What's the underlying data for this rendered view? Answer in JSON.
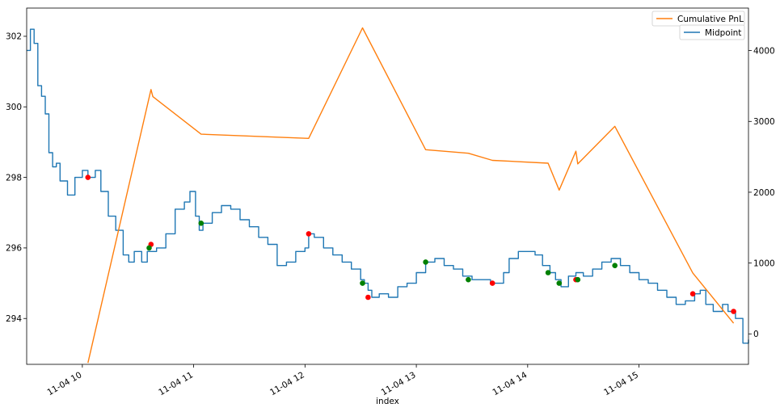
{
  "chart_data": {
    "type": "line",
    "xlabel": "index",
    "x_range": [
      "2019-11-04 09:30",
      "2019-11-04 15:59"
    ],
    "left_ylim": [
      292.7,
      302.8
    ],
    "right_ylim": [
      -430,
      4600
    ],
    "grid": false,
    "legend_placement": "top-right",
    "x_ticks": [
      {
        "t": "2019-11-04 10:00",
        "label": "11-04 10"
      },
      {
        "t": "2019-11-04 11:00",
        "label": "11-04 11"
      },
      {
        "t": "2019-11-04 12:00",
        "label": "11-04 12"
      },
      {
        "t": "2019-11-04 13:00",
        "label": "11-04 13"
      },
      {
        "t": "2019-11-04 14:00",
        "label": "11-04 14"
      },
      {
        "t": "2019-11-04 15:00",
        "label": "11-04 15"
      }
    ],
    "left_ticks": [
      "294",
      "296",
      "298",
      "300",
      "302"
    ],
    "right_ticks": [
      "0",
      "1000",
      "2000",
      "3000",
      "4000"
    ],
    "legend": [
      {
        "label": "Cumulative PnL",
        "color": "#ff7f0e"
      },
      {
        "label": "Midpoint",
        "color": "#1f77b4"
      }
    ],
    "series": [
      {
        "name": "Midpoint",
        "axis": "left",
        "color": "#1f77b4",
        "points": [
          [
            "2019-11-04 09:30",
            301.6
          ],
          [
            "2019-11-04 09:32",
            302.2
          ],
          [
            "2019-11-04 09:34",
            301.8
          ],
          [
            "2019-11-04 09:36",
            300.6
          ],
          [
            "2019-11-04 09:38",
            300.3
          ],
          [
            "2019-11-04 09:40",
            299.8
          ],
          [
            "2019-11-04 09:42",
            298.7
          ],
          [
            "2019-11-04 09:44",
            298.3
          ],
          [
            "2019-11-04 09:46",
            298.4
          ],
          [
            "2019-11-04 09:48",
            297.9
          ],
          [
            "2019-11-04 09:52",
            297.5
          ],
          [
            "2019-11-04 09:56",
            298.0
          ],
          [
            "2019-11-04 10:00",
            298.2
          ],
          [
            "2019-11-04 10:03",
            298.0
          ],
          [
            "2019-11-04 10:07",
            298.2
          ],
          [
            "2019-11-04 10:10",
            297.6
          ],
          [
            "2019-11-04 10:14",
            296.9
          ],
          [
            "2019-11-04 10:18",
            296.5
          ],
          [
            "2019-11-04 10:22",
            295.8
          ],
          [
            "2019-11-04 10:25",
            295.6
          ],
          [
            "2019-11-04 10:28",
            295.9
          ],
          [
            "2019-11-04 10:32",
            295.6
          ],
          [
            "2019-11-04 10:35",
            295.9
          ],
          [
            "2019-11-04 10:40",
            296.0
          ],
          [
            "2019-11-04 10:45",
            296.4
          ],
          [
            "2019-11-04 10:50",
            297.1
          ],
          [
            "2019-11-04 10:55",
            297.3
          ],
          [
            "2019-11-04 10:58",
            297.6
          ],
          [
            "2019-11-04 11:01",
            296.9
          ],
          [
            "2019-11-04 11:03",
            296.5
          ],
          [
            "2019-11-04 11:05",
            296.7
          ],
          [
            "2019-11-04 11:10",
            297.0
          ],
          [
            "2019-11-04 11:15",
            297.2
          ],
          [
            "2019-11-04 11:20",
            297.1
          ],
          [
            "2019-11-04 11:25",
            296.8
          ],
          [
            "2019-11-04 11:30",
            296.6
          ],
          [
            "2019-11-04 11:35",
            296.3
          ],
          [
            "2019-11-04 11:40",
            296.1
          ],
          [
            "2019-11-04 11:45",
            295.5
          ],
          [
            "2019-11-04 11:50",
            295.6
          ],
          [
            "2019-11-04 11:55",
            295.9
          ],
          [
            "2019-11-04 12:00",
            296.0
          ],
          [
            "2019-11-04 12:02",
            296.4
          ],
          [
            "2019-11-04 12:05",
            296.3
          ],
          [
            "2019-11-04 12:10",
            296.0
          ],
          [
            "2019-11-04 12:15",
            295.8
          ],
          [
            "2019-11-04 12:20",
            295.6
          ],
          [
            "2019-11-04 12:25",
            295.4
          ],
          [
            "2019-11-04 12:30",
            295.1
          ],
          [
            "2019-11-04 12:32",
            295.0
          ],
          [
            "2019-11-04 12:34",
            294.8
          ],
          [
            "2019-11-04 12:36",
            294.6
          ],
          [
            "2019-11-04 12:40",
            294.7
          ],
          [
            "2019-11-04 12:45",
            294.6
          ],
          [
            "2019-11-04 12:50",
            294.9
          ],
          [
            "2019-11-04 12:55",
            295.0
          ],
          [
            "2019-11-04 13:00",
            295.3
          ],
          [
            "2019-11-04 13:05",
            295.6
          ],
          [
            "2019-11-04 13:10",
            295.7
          ],
          [
            "2019-11-04 13:15",
            295.5
          ],
          [
            "2019-11-04 13:20",
            295.4
          ],
          [
            "2019-11-04 13:25",
            295.2
          ],
          [
            "2019-11-04 13:30",
            295.1
          ],
          [
            "2019-11-04 13:35",
            295.1
          ],
          [
            "2019-11-04 13:40",
            295.0
          ],
          [
            "2019-11-04 13:44",
            295.0
          ],
          [
            "2019-11-04 13:47",
            295.3
          ],
          [
            "2019-11-04 13:50",
            295.7
          ],
          [
            "2019-11-04 13:55",
            295.9
          ],
          [
            "2019-11-04 14:00",
            295.9
          ],
          [
            "2019-11-04 14:04",
            295.8
          ],
          [
            "2019-11-04 14:08",
            295.5
          ],
          [
            "2019-11-04 14:12",
            295.3
          ],
          [
            "2019-11-04 14:15",
            295.1
          ],
          [
            "2019-11-04 14:18",
            294.9
          ],
          [
            "2019-11-04 14:22",
            295.2
          ],
          [
            "2019-11-04 14:26",
            295.3
          ],
          [
            "2019-11-04 14:30",
            295.2
          ],
          [
            "2019-11-04 14:35",
            295.4
          ],
          [
            "2019-11-04 14:40",
            295.6
          ],
          [
            "2019-11-04 14:45",
            295.7
          ],
          [
            "2019-11-04 14:50",
            295.5
          ],
          [
            "2019-11-04 14:55",
            295.3
          ],
          [
            "2019-11-04 15:00",
            295.1
          ],
          [
            "2019-11-04 15:05",
            295.0
          ],
          [
            "2019-11-04 15:10",
            294.8
          ],
          [
            "2019-11-04 15:15",
            294.6
          ],
          [
            "2019-11-04 15:20",
            294.4
          ],
          [
            "2019-11-04 15:25",
            294.5
          ],
          [
            "2019-11-04 15:30",
            294.7
          ],
          [
            "2019-11-04 15:33",
            294.8
          ],
          [
            "2019-11-04 15:36",
            294.4
          ],
          [
            "2019-11-04 15:40",
            294.2
          ],
          [
            "2019-11-04 15:45",
            294.4
          ],
          [
            "2019-11-04 15:48",
            294.2
          ],
          [
            "2019-11-04 15:52",
            294.0
          ],
          [
            "2019-11-04 15:56",
            293.3
          ],
          [
            "2019-11-04 15:59",
            293.4
          ]
        ]
      },
      {
        "name": "Cumulative PnL",
        "axis": "right",
        "color": "#ff7f0e",
        "points": [
          [
            "2019-11-04 10:03",
            -410
          ],
          [
            "2019-11-04 10:37",
            3450
          ],
          [
            "2019-11-04 10:38",
            3350
          ],
          [
            "2019-11-04 11:04",
            2820
          ],
          [
            "2019-11-04 12:02",
            2760
          ],
          [
            "2019-11-04 12:31",
            4320
          ],
          [
            "2019-11-04 13:05",
            2600
          ],
          [
            "2019-11-04 13:28",
            2550
          ],
          [
            "2019-11-04 13:41",
            2450
          ],
          [
            "2019-11-04 14:11",
            2410
          ],
          [
            "2019-11-04 14:17",
            2030
          ],
          [
            "2019-11-04 14:26",
            2580
          ],
          [
            "2019-11-04 14:27",
            2400
          ],
          [
            "2019-11-04 14:47",
            2930
          ],
          [
            "2019-11-04 15:29",
            860
          ],
          [
            "2019-11-04 15:51",
            150
          ]
        ]
      }
    ],
    "markers": {
      "red": [
        [
          "2019-11-04 10:03",
          298.0
        ],
        [
          "2019-11-04 10:37",
          296.1
        ],
        [
          "2019-11-04 12:02",
          296.4
        ],
        [
          "2019-11-04 12:34",
          294.6
        ],
        [
          "2019-11-04 13:41",
          295.0
        ],
        [
          "2019-11-04 14:26",
          295.1
        ],
        [
          "2019-11-04 15:29",
          294.7
        ],
        [
          "2019-11-04 15:51",
          294.2
        ]
      ],
      "green": [
        [
          "2019-11-04 10:36",
          296.0
        ],
        [
          "2019-11-04 11:04",
          296.7
        ],
        [
          "2019-11-04 12:31",
          295.0
        ],
        [
          "2019-11-04 13:05",
          295.6
        ],
        [
          "2019-11-04 13:28",
          295.1
        ],
        [
          "2019-11-04 14:11",
          295.3
        ],
        [
          "2019-11-04 14:17",
          295.0
        ],
        [
          "2019-11-04 14:27",
          295.1
        ],
        [
          "2019-11-04 14:47",
          295.5
        ]
      ]
    }
  }
}
